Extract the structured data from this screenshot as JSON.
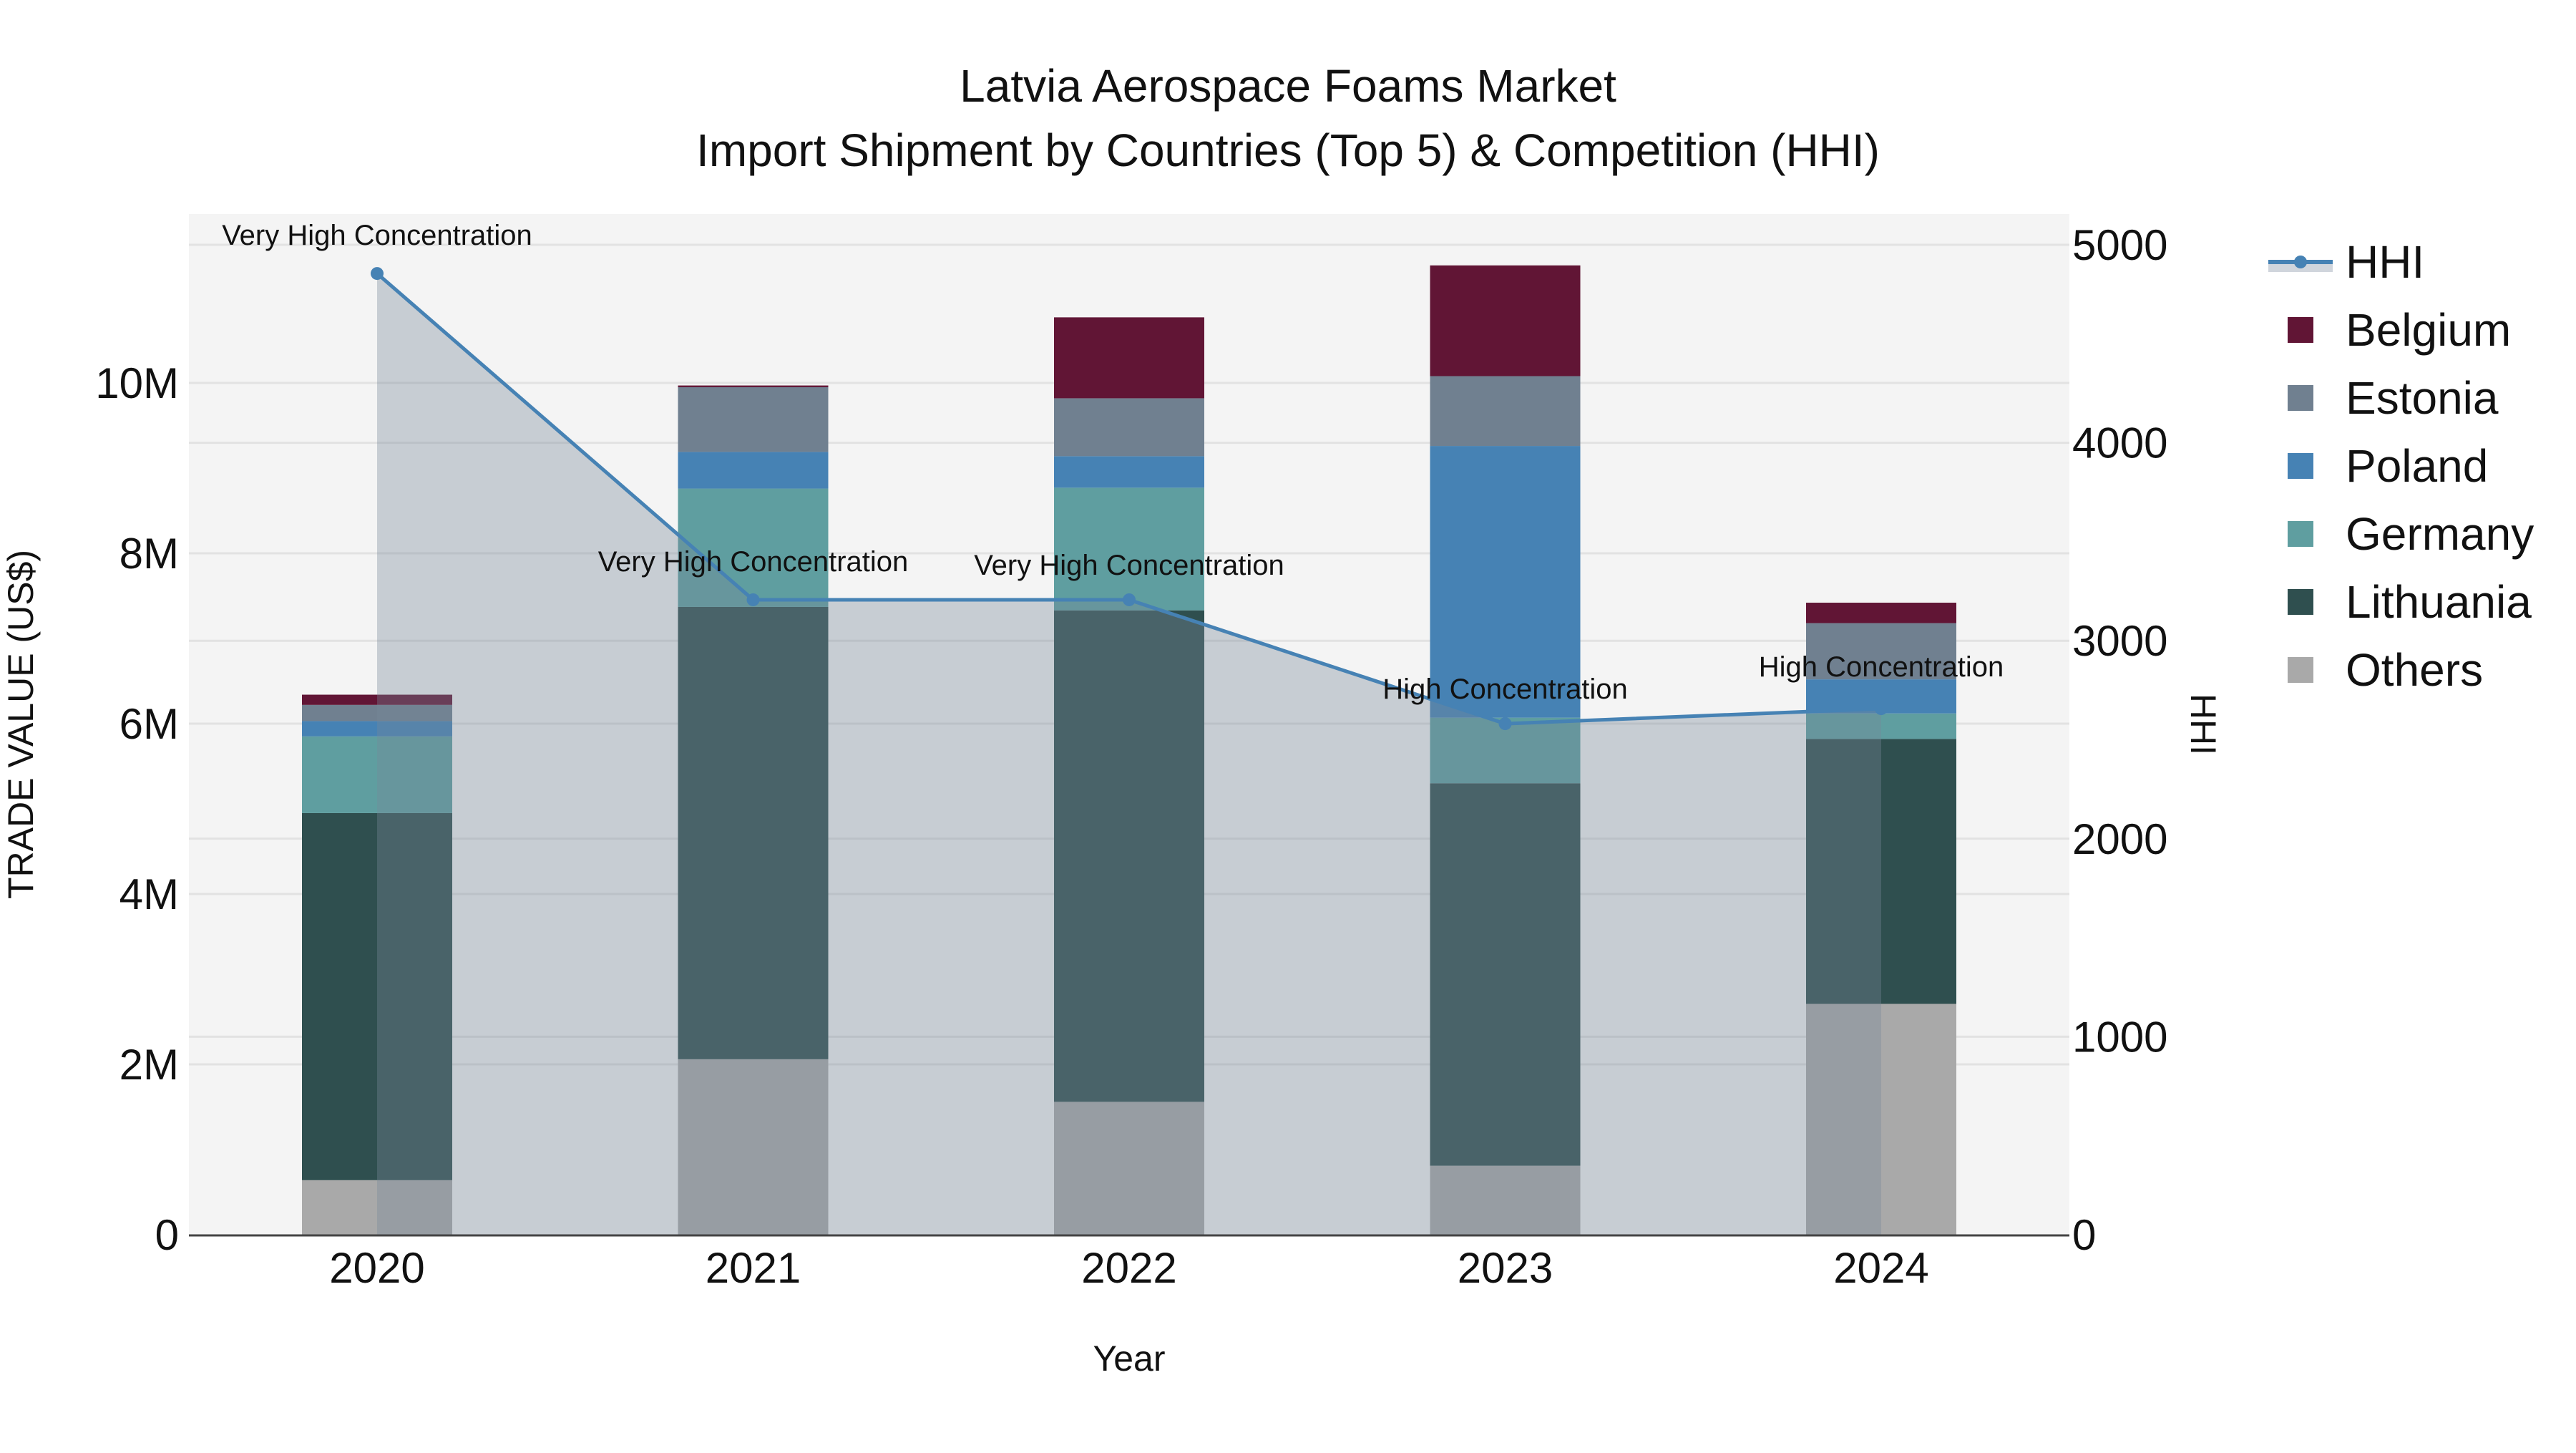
{
  "title": {
    "line1": "Latvia Aerospace Foams Market",
    "line2": "Import Shipment by Countries (Top 5) & Competition (HHI)"
  },
  "axes": {
    "x_title": "Year",
    "y_left_title": "TRADE VALUE (US$)",
    "y_right_title": "HHI",
    "y_left_ticks": [
      "0",
      "2M",
      "4M",
      "6M",
      "8M",
      "10M"
    ],
    "y_right_ticks": [
      "0",
      "1000",
      "2000",
      "3000",
      "4000",
      "5000"
    ]
  },
  "legend": {
    "items": [
      {
        "label": "HHI",
        "type": "line",
        "color": "#4682b4"
      },
      {
        "label": "Belgium",
        "type": "bar",
        "color": "#611535"
      },
      {
        "label": "Estonia",
        "type": "bar",
        "color": "#708090"
      },
      {
        "label": "Poland",
        "type": "bar",
        "color": "#4682b4"
      },
      {
        "label": "Germany",
        "type": "bar",
        "color": "#5f9ea0"
      },
      {
        "label": "Lithuania",
        "type": "bar",
        "color": "#2f4f4f"
      },
      {
        "label": "Others",
        "type": "bar",
        "color": "#a9a9a9"
      }
    ]
  },
  "colors": {
    "plot_bg": "#f4f4f4",
    "grid": "#e2e2e2",
    "hhi_line": "#4682b4",
    "hhi_fill": "rgba(119,136,153,0.36)",
    "axis_line": "#444444"
  },
  "chart_data": {
    "type": "bar",
    "stacked": true,
    "title": "Latvia Aerospace Foams Market - Import Shipment by Countries (Top 5) & Competition (HHI)",
    "xlabel": "Year",
    "ylabel": "TRADE VALUE (US$)",
    "y2label": "HHI",
    "categories": [
      "2020",
      "2021",
      "2022",
      "2023",
      "2024"
    ],
    "ylim": [
      0,
      11900000
    ],
    "y2lim": [
      0,
      5155
    ],
    "grid": true,
    "legend_position": "right",
    "series": [
      {
        "name": "Others",
        "color": "#a9a9a9",
        "values": [
          640000,
          2060000,
          1560000,
          810000,
          2710000
        ]
      },
      {
        "name": "Lithuania",
        "color": "#2f4f4f",
        "values": [
          4310000,
          5310000,
          5770000,
          4490000,
          3110000
        ]
      },
      {
        "name": "Germany",
        "color": "#5f9ea0",
        "values": [
          900000,
          1390000,
          1440000,
          770000,
          300000
        ]
      },
      {
        "name": "Poland",
        "color": "#4682b4",
        "values": [
          180000,
          430000,
          370000,
          3190000,
          400000
        ]
      },
      {
        "name": "Estonia",
        "color": "#708090",
        "values": [
          190000,
          760000,
          680000,
          820000,
          660000
        ]
      },
      {
        "name": "Belgium",
        "color": "#611535",
        "values": [
          120000,
          20000,
          950000,
          1300000,
          240000
        ]
      }
    ],
    "line_series": {
      "name": "HHI",
      "axis": "right",
      "color": "#4682b4",
      "fill": "tozeroy",
      "values": [
        4855,
        3207,
        3207,
        2581,
        2657
      ],
      "annotations": [
        "Very High Concentration",
        "Very High Concentration",
        "Very High Concentration",
        "High Concentration",
        "High Concentration"
      ]
    }
  }
}
